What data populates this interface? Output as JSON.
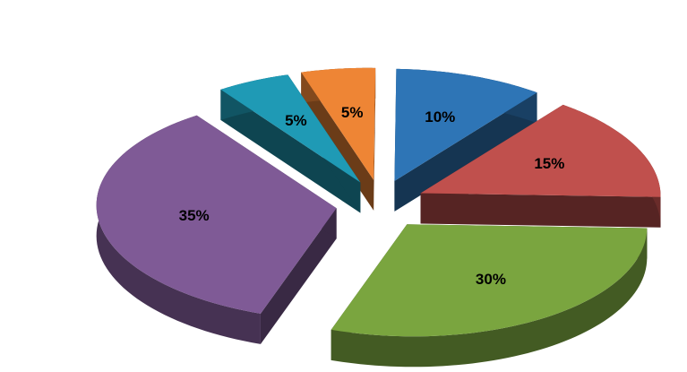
{
  "chart_data": {
    "type": "pie",
    "style": "3d-exploded",
    "grid": false,
    "legend": "none",
    "slices": [
      {
        "value": 10,
        "label": "10%",
        "color": "#2E75B6"
      },
      {
        "value": 15,
        "label": "15%",
        "color": "#C0504D"
      },
      {
        "value": 30,
        "label": "30%",
        "color": "#7AA53F"
      },
      {
        "value": 35,
        "label": "35%",
        "color": "#7F5A96"
      },
      {
        "value": 5,
        "label": "5%",
        "color": "#1F9AB5"
      },
      {
        "value": 5,
        "label": "5%",
        "color": "#EE8535"
      }
    ]
  }
}
